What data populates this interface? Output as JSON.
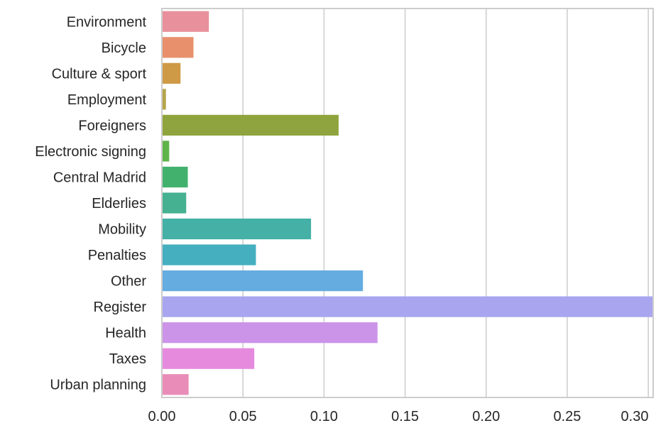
{
  "chart_data": {
    "type": "bar",
    "orientation": "horizontal",
    "title": "",
    "xlabel": "",
    "ylabel": "",
    "categories": [
      "Environment",
      "Bicycle",
      "Culture & sport",
      "Employment",
      "Foreigners",
      "Electronic signing",
      "Central Madrid",
      "Elderlies",
      "Mobility",
      "Penalties",
      "Other",
      "Register",
      "Health",
      "Taxes",
      "Urban planning"
    ],
    "values": [
      0.029,
      0.0195,
      0.0115,
      0.0025,
      0.109,
      0.0045,
      0.016,
      0.015,
      0.092,
      0.058,
      0.124,
      0.303,
      0.133,
      0.057,
      0.0165
    ],
    "colors": [
      "#e8919c",
      "#e8906c",
      "#cf9a45",
      "#b5a44a",
      "#8fa43e",
      "#5fb449",
      "#43b16e",
      "#45b190",
      "#44b0a6",
      "#45afc0",
      "#65ace0",
      "#a9a6ef",
      "#cb94e8",
      "#e68ade",
      "#e98db8"
    ],
    "xlim": [
      0,
      0.303
    ],
    "xticks": [
      0.0,
      0.05,
      0.1,
      0.15,
      0.2,
      0.25,
      0.3
    ],
    "xtick_labels": [
      "0.00",
      "0.05",
      "0.10",
      "0.15",
      "0.20",
      "0.25",
      "0.30"
    ],
    "grid": "vertical",
    "legend": "none"
  }
}
